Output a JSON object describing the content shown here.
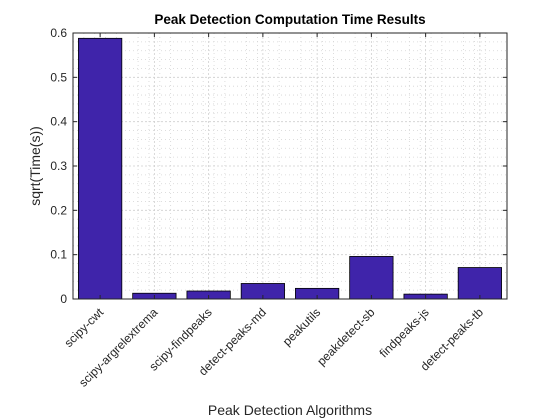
{
  "chart_data": {
    "type": "bar",
    "title": "Peak Detection Computation Time Results",
    "xlabel": "Peak Detection Algorithms",
    "ylabel": "sqrt(Time(s))",
    "categories": [
      "scipy-cwt",
      "scipy-argrelextrema",
      "scipy-findpeaks",
      "detect-peaks-md",
      "peakutils",
      "peakdetect-sb",
      "findpeaks-js",
      "detect-peaks-tb"
    ],
    "values": [
      0.588,
      0.013,
      0.018,
      0.035,
      0.024,
      0.096,
      0.011,
      0.071
    ],
    "ylim": [
      0,
      0.6
    ],
    "yticks": [
      0,
      0.1,
      0.2,
      0.3,
      0.4,
      0.5,
      0.6
    ],
    "ytick_labels": [
      "0",
      "0.1",
      "0.2",
      "0.3",
      "0.4",
      "0.5",
      "0.6"
    ],
    "grid": true,
    "minor_grid": true,
    "colors": {
      "bar_fill": "#3f24aa",
      "bar_edge": "#000000",
      "grid": "#d4d4d4",
      "axis": "#262626"
    }
  }
}
